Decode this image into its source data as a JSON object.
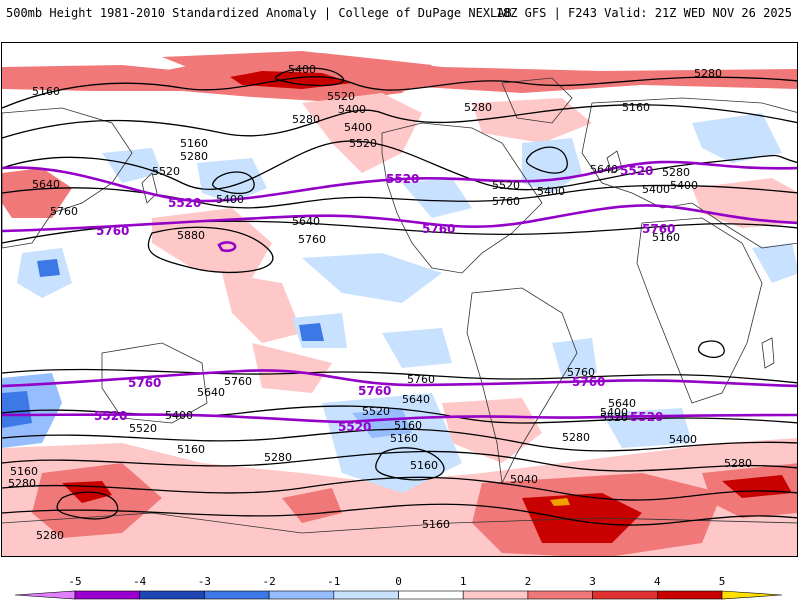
{
  "header": {
    "title_left": "500mb Height 1981-2010 Standardized Anomaly | College of DuPage NEXLAB",
    "title_right": "18Z GFS | F243 Valid: 21Z WED NOV 26 2025"
  },
  "colors": {
    "land_outline": "#333333",
    "contour_black": "#000000",
    "contour_purple": "#9400c8",
    "anom_neg_1": "#c8e1ff",
    "anom_pos_1": "#ffc8c8",
    "anom_pos_2": "#f07878",
    "anom_pos_3": "#c80000",
    "anom_pos_4": "#f0a000"
  },
  "contour_labels": {
    "black": [
      "5400",
      "5280",
      "5160",
      "5520",
      "5400",
      "5280",
      "5400",
      "5520",
      "5160",
      "5280",
      "5520",
      "5640",
      "5520",
      "5760",
      "5400",
      "5160",
      "5280",
      "5640",
      "5880",
      "5760",
      "5400",
      "5760",
      "5640",
      "5280",
      "5400",
      "5160",
      "5760",
      "5640",
      "5760",
      "5640",
      "5400",
      "5520",
      "5160",
      "5280",
      "5160",
      "5520",
      "5400",
      "5760",
      "5640",
      "5520",
      "5400",
      "5160",
      "5040",
      "5280",
      "5160",
      "5280",
      "5160",
      "5280",
      "5160",
      "5400",
      "5280"
    ],
    "purple": [
      "5520",
      "5520",
      "5520",
      "5760",
      "5760",
      "5760",
      "5760",
      "5760",
      "5760",
      "5520",
      "5520",
      "5520"
    ]
  },
  "legend": {
    "ticks": [
      "-5",
      "-4",
      "-3",
      "-2",
      "-1",
      "0",
      "1",
      "2",
      "3",
      "4",
      "5"
    ],
    "colors": [
      "#e080ff",
      "#9b00d0",
      "#1e46b4",
      "#3c78e6",
      "#96beff",
      "#c8e1ff",
      "#ffffff",
      "#ffc8c8",
      "#f07878",
      "#e03030",
      "#c80000",
      "#f0a000",
      "#ffe000"
    ]
  }
}
